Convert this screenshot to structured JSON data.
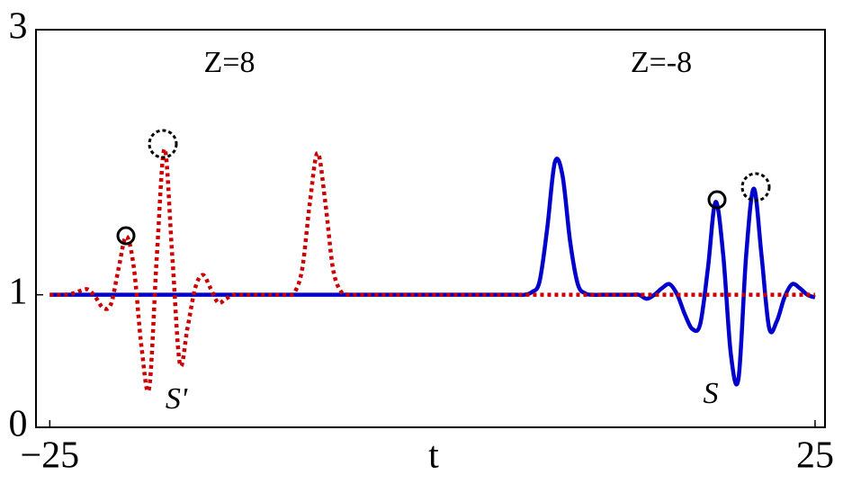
{
  "chart_data": {
    "type": "line",
    "x": [
      -25,
      -24.5,
      -24,
      -23.5,
      -23,
      -22.5,
      -22,
      -21.5,
      -21,
      -20.5,
      -20,
      -19.5,
      -19,
      -18.5,
      -18,
      -17.5,
      -17,
      -16.5,
      -16,
      -15.5,
      -15,
      -14.5,
      -14,
      -13.5,
      -13,
      -12.5,
      -12,
      -11.5,
      -11,
      -10.5,
      -10,
      -9.5,
      -9,
      -8.5,
      -8,
      -7.5,
      -7,
      -6.5,
      -6,
      -5.5,
      -5,
      -4.5,
      -4,
      -3.5,
      -3,
      -2.5,
      -2,
      -1.5,
      -1,
      -0.5,
      0,
      0.5,
      1,
      1.5,
      2,
      2.5,
      3,
      3.5,
      4,
      4.5,
      5,
      5.5,
      6,
      6.5,
      7,
      7.5,
      8,
      8.5,
      9,
      9.5,
      10,
      10.5,
      11,
      11.5,
      12,
      12.5,
      13,
      13.5,
      14,
      14.5,
      15,
      15.5,
      16,
      16.5,
      17,
      17.5,
      18,
      18.5,
      19,
      19.5,
      20,
      20.5,
      21,
      21.5,
      22,
      22.5,
      23,
      23.5,
      24,
      24.5,
      25
    ],
    "series": [
      {
        "name": "Z=-8",
        "color": "#0000cc",
        "style": "solid",
        "values": [
          1,
          1,
          1,
          1,
          1,
          1,
          1,
          1,
          1,
          1,
          1,
          1,
          1,
          1,
          1,
          1,
          1,
          1,
          1,
          1,
          1,
          1,
          1,
          1,
          1,
          1,
          1,
          1,
          1,
          1,
          1,
          1,
          1,
          1,
          1,
          1,
          1,
          1,
          1,
          1,
          1,
          1,
          1,
          1,
          1,
          1,
          1,
          1,
          1,
          1,
          1,
          1,
          1,
          1,
          1,
          1,
          1,
          1,
          1,
          1,
          1,
          1,
          1,
          1.02,
          1.1,
          1.5,
          2.0,
          1.9,
          1.4,
          1.08,
          1.01,
          1,
          1,
          1,
          1,
          1,
          1,
          1,
          0.97,
          1,
          1.05,
          1.08,
          1,
          0.85,
          0.74,
          0.78,
          1.2,
          1.7,
          1.3,
          0.55,
          0.37,
          1.3,
          1.8,
          1.3,
          0.75,
          0.8,
          0.98,
          1.08,
          1.05,
          1,
          0.98
        ]
      },
      {
        "name": "Z=8",
        "color": "#cc0000",
        "style": "dotted",
        "values": [
          1,
          1,
          1,
          1.01,
          1.03,
          1.04,
          0.98,
          0.9,
          0.93,
          1.2,
          1.44,
          1.2,
          0.6,
          0.3,
          1.3,
          2.1,
          1.3,
          0.48,
          0.75,
          1.05,
          1.15,
          1.05,
          0.94,
          0.97,
          1,
          1,
          1,
          1,
          1,
          1,
          1,
          1,
          1.02,
          1.2,
          1.7,
          2.07,
          1.7,
          1.2,
          1.03,
          1,
          1,
          1,
          1,
          1,
          1,
          1,
          1,
          1,
          1,
          1,
          1,
          1,
          1,
          1,
          1,
          1,
          1,
          1,
          1,
          1,
          1,
          1,
          1,
          1,
          1,
          1,
          1,
          1,
          1,
          1,
          1,
          1,
          1,
          1,
          1,
          1,
          1,
          1,
          1,
          1,
          1,
          1,
          1,
          1,
          1,
          1,
          1,
          1,
          1,
          1,
          1,
          1,
          1,
          1,
          1,
          1,
          1,
          1,
          1,
          1,
          1
        ]
      }
    ],
    "xlim": [
      -25.9,
      25.65
    ],
    "ylim": [
      0,
      3
    ],
    "xticks": [
      {
        "value": -25,
        "label": "−25"
      },
      25
    ],
    "yticks": [
      0,
      1,
      3
    ],
    "xlabel": "t",
    "annotations": [
      "Z=8",
      "Z=-8",
      "S'",
      "S"
    ]
  }
}
